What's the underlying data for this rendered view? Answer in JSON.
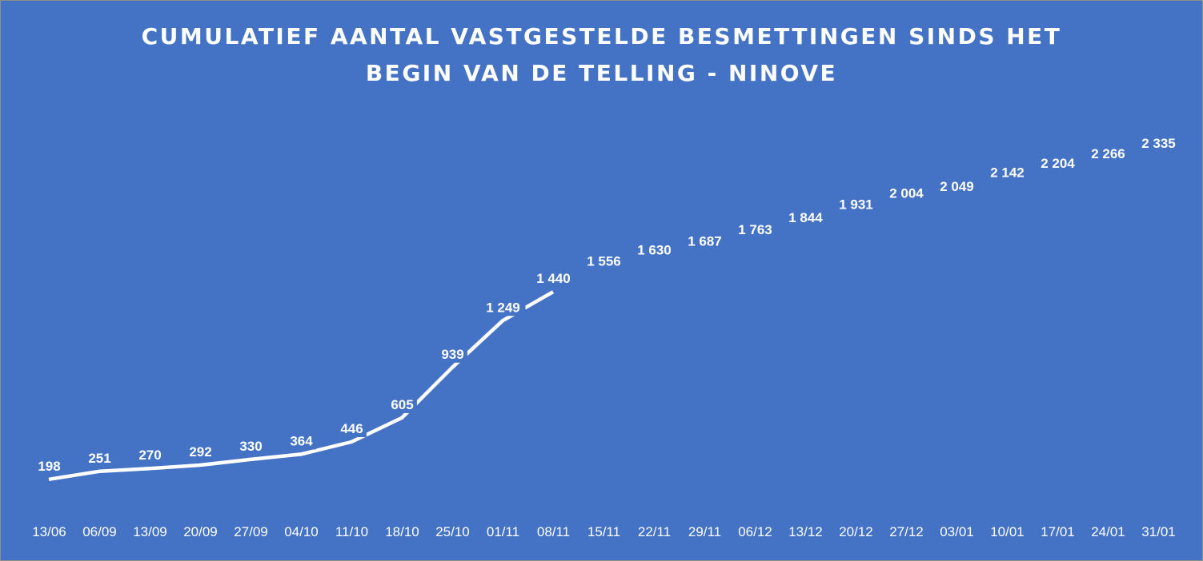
{
  "chart_data": {
    "type": "line",
    "title_lines": [
      "CUMULATIEF AANTAL VASTGESTELDE BESMETTINGEN SINDS HET",
      "BEGIN VAN DE TELLING - NINOVE"
    ],
    "categories": [
      "13/06",
      "06/09",
      "13/09",
      "20/09",
      "27/09",
      "04/10",
      "11/10",
      "18/10",
      "25/10",
      "01/11",
      "08/11",
      "15/11",
      "22/11",
      "29/11",
      "06/12",
      "13/12",
      "20/12",
      "27/12",
      "03/01",
      "10/01",
      "17/01",
      "24/01",
      "31/01"
    ],
    "values": [
      198,
      251,
      270,
      292,
      330,
      364,
      446,
      605,
      939,
      1249,
      1440,
      1556,
      1630,
      1687,
      1763,
      1844,
      1931,
      2004,
      2049,
      2142,
      2204,
      2266,
      2335
    ],
    "value_labels": [
      "198",
      "251",
      "270",
      "292",
      "330",
      "364",
      "446",
      "605",
      "939",
      "1 249",
      "1 440",
      "1 556",
      "1 630",
      "1 687",
      "1 763",
      "1 844",
      "1 931",
      "2 004",
      "2 049",
      "2 142",
      "2 204",
      "2 266",
      "2 335"
    ],
    "line_visible_through_index": 10,
    "drop_lines": true,
    "grid": false,
    "legend": "none",
    "colors": {
      "background": "#4472c4",
      "line": "#ffffff",
      "text": "#ffffff"
    }
  }
}
